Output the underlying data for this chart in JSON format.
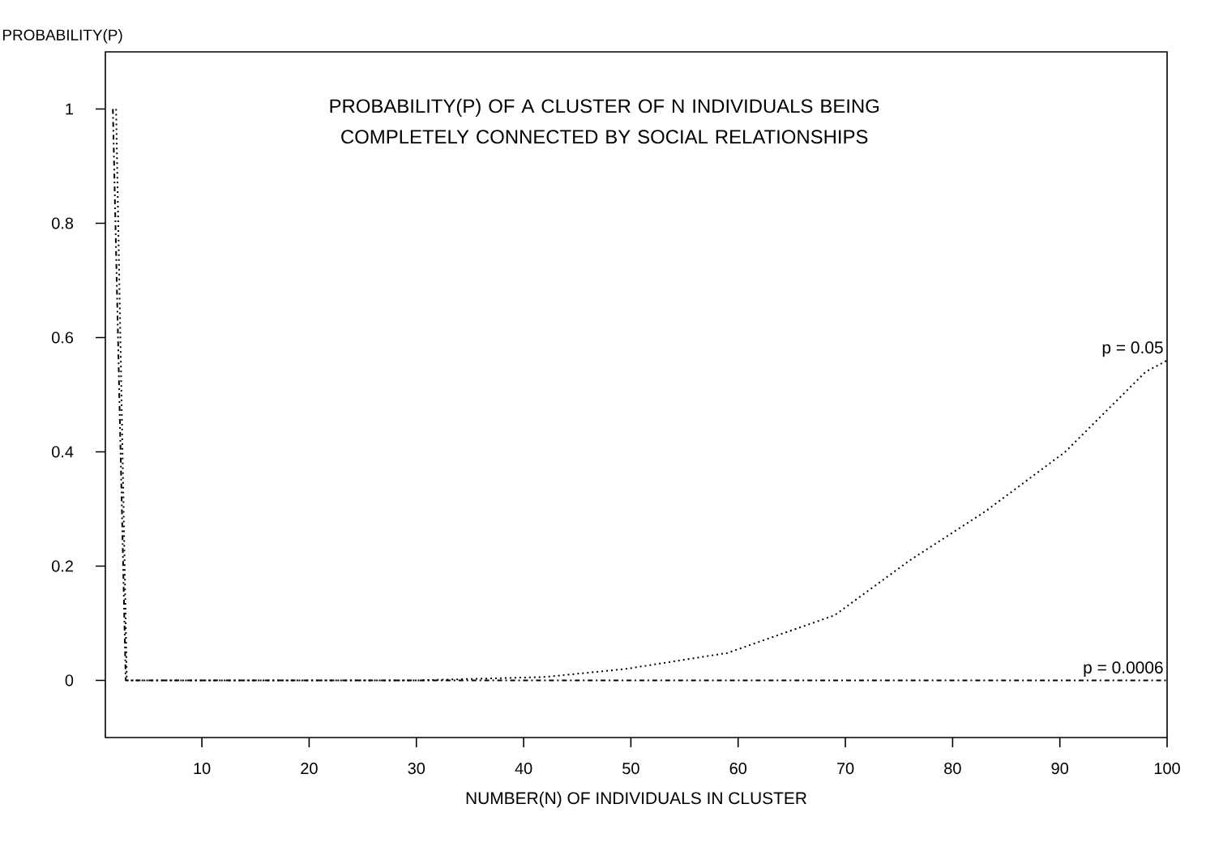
{
  "chart_data": {
    "type": "line",
    "title": "PROBABILITY(P) OF A CLUSTER OF N INDIVIDUALS BEING COMPLETELY CONNECTED BY SOCIAL RELATIONSHIPS",
    "xlabel": "NUMBER(N) OF INDIVIDUALS IN CLUSTER",
    "ylabel": "PROBABILITY(P)",
    "xlim": [
      1,
      100
    ],
    "ylim": [
      -0.1,
      1.1
    ],
    "xticks": [
      10,
      20,
      30,
      40,
      50,
      60,
      70,
      80,
      90,
      100
    ],
    "yticks": [
      0,
      0.2,
      0.4,
      0.6,
      0.8,
      1
    ],
    "grid": false,
    "legend": false,
    "marker": "none",
    "series": [
      {
        "name": "p = 0.05",
        "color": "#000000",
        "line_style": "dotted",
        "x": [
          2,
          3,
          10,
          30,
          42,
          49.5,
          59,
          69,
          76,
          83,
          90.5,
          98,
          100
        ],
        "values": [
          1,
          0,
          0,
          0,
          0.006,
          0.02,
          0.048,
          0.114,
          0.21,
          0.295,
          0.4,
          0.54,
          0.56
        ]
      },
      {
        "name": "p = 0.0006",
        "color": "#000000",
        "line_style": "dashdot",
        "x": [
          1.7,
          2.9,
          100
        ],
        "values": [
          1,
          0,
          0
        ]
      }
    ]
  }
}
